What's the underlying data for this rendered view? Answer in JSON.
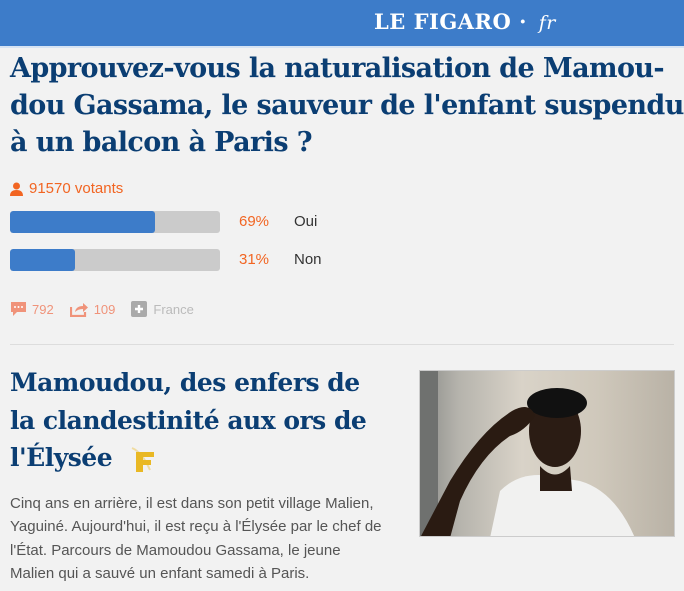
{
  "header": {
    "logo_main": "LE FIGARO",
    "logo_suffix": "fr",
    "brand_color": "#3d7cc9"
  },
  "poll": {
    "question_lines": [
      "Approuvez-vous la naturalisation de Mamou-",
      "dou Gassama, le sauveur de l'enfant suspendu",
      "à un balcon à Paris ?"
    ],
    "voters": "91570 votants",
    "options": [
      {
        "percent_label": "69%",
        "label": "Oui",
        "percent": 69
      },
      {
        "percent_label": "31%",
        "label": "Non",
        "percent": 31
      }
    ],
    "comments": "792",
    "shares": "109",
    "tag": "France"
  },
  "article": {
    "title_lines": [
      "Mamoudou, des enfers de",
      "la clandestinité aux ors de",
      "l'Élysée"
    ],
    "badge": "F",
    "body_lines": [
      "Cinq ans en arrière, il est dans son petit village Malien,",
      "Yaguiné. Aujourd'hui, il est reçu à l'Élysée par le chef de",
      "l'État. Parcours de Mamoudou Gassama, le jeune",
      "Malien qui a sauvé un enfant samedi à Paris."
    ]
  }
}
